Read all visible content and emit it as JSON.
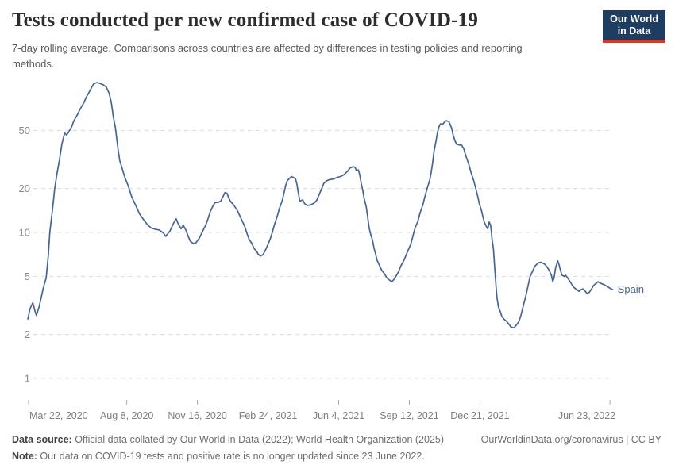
{
  "header": {
    "title": "Tests conducted per new confirmed case of COVID-19",
    "subtitle": "7-day rolling average. Comparisons across countries are affected by differences in testing policies and reporting methods.",
    "logo": {
      "line1": "Our World",
      "line2": "in Data",
      "bg_color": "#1d3d63",
      "accent_color": "#d13b27"
    }
  },
  "chart_data": {
    "type": "line",
    "title": "Tests conducted per new confirmed case of COVID-19",
    "y_scale": "log",
    "grid": true,
    "y_ticks": [
      1,
      2,
      5,
      10,
      20,
      50
    ],
    "ylim": [
      1,
      110
    ],
    "x_unit": "days since Mar 22, 2020",
    "xlim_days": [
      -1,
      827
    ],
    "x_ticks": [
      {
        "label": "Mar 22, 2020",
        "day": 0
      },
      {
        "label": "Aug 8, 2020",
        "day": 139
      },
      {
        "label": "Nov 16, 2020",
        "day": 239
      },
      {
        "label": "Feb 24, 2021",
        "day": 339
      },
      {
        "label": "Jun 4, 2021",
        "day": 439
      },
      {
        "label": "Sep 12, 2021",
        "day": 539
      },
      {
        "label": "Dec 21, 2021",
        "day": 639
      },
      {
        "label": "Jun 23, 2022",
        "day": 823
      }
    ],
    "series": [
      {
        "name": "Spain",
        "color": "#44659c",
        "points": [
          [
            -1,
            2.55
          ],
          [
            2,
            3.0
          ],
          [
            6,
            3.3
          ],
          [
            9,
            2.9
          ],
          [
            11,
            2.7
          ],
          [
            15,
            3.1
          ],
          [
            18,
            3.6
          ],
          [
            21,
            4.2
          ],
          [
            25,
            4.9
          ],
          [
            28,
            7.0
          ],
          [
            30,
            10
          ],
          [
            34,
            14.5
          ],
          [
            37,
            20
          ],
          [
            40,
            25
          ],
          [
            44,
            32
          ],
          [
            47,
            40
          ],
          [
            51,
            48
          ],
          [
            54,
            46.5
          ],
          [
            57,
            49
          ],
          [
            61,
            53
          ],
          [
            64,
            58
          ],
          [
            69,
            64
          ],
          [
            73,
            70
          ],
          [
            78,
            77
          ],
          [
            82,
            85
          ],
          [
            85,
            90
          ],
          [
            89,
            98
          ],
          [
            92,
            104
          ],
          [
            97,
            106.5
          ],
          [
            101,
            105
          ],
          [
            106,
            102.5
          ],
          [
            110,
            99
          ],
          [
            114,
            90
          ],
          [
            117,
            78
          ],
          [
            120,
            62
          ],
          [
            123,
            52
          ],
          [
            125,
            43
          ],
          [
            127,
            36
          ],
          [
            129,
            31
          ],
          [
            132,
            28
          ],
          [
            136,
            24
          ],
          [
            141,
            20.9
          ],
          [
            146,
            17.5
          ],
          [
            152,
            15.2
          ],
          [
            157,
            13.4
          ],
          [
            163,
            12.2
          ],
          [
            169,
            11.2
          ],
          [
            174,
            10.7
          ],
          [
            180,
            10.5
          ],
          [
            185,
            10.4
          ],
          [
            191,
            9.9
          ],
          [
            194,
            9.4
          ],
          [
            200,
            10.2
          ],
          [
            206,
            11.8
          ],
          [
            209,
            12.4
          ],
          [
            212,
            11.4
          ],
          [
            216,
            10.6
          ],
          [
            219,
            11.2
          ],
          [
            223,
            10.3
          ],
          [
            226,
            9.4
          ],
          [
            229,
            8.7
          ],
          [
            233,
            8.4
          ],
          [
            237,
            8.5
          ],
          [
            242,
            9.2
          ],
          [
            246,
            10.1
          ],
          [
            251,
            11.3
          ],
          [
            254,
            12.4
          ],
          [
            257,
            13.8
          ],
          [
            261,
            15.2
          ],
          [
            264,
            16.0
          ],
          [
            269,
            16.1
          ],
          [
            272,
            16.4
          ],
          [
            275,
            17.5
          ],
          [
            278,
            18.8
          ],
          [
            281,
            18.5
          ],
          [
            283,
            17.4
          ],
          [
            286,
            16.3
          ],
          [
            289,
            15.7
          ],
          [
            292,
            15.0
          ],
          [
            296,
            14.0
          ],
          [
            299,
            13.0
          ],
          [
            302,
            12.1
          ],
          [
            306,
            11.0
          ],
          [
            309,
            9.9
          ],
          [
            312,
            9.0
          ],
          [
            316,
            8.4
          ],
          [
            319,
            7.8
          ],
          [
            323,
            7.4
          ],
          [
            325,
            7.1
          ],
          [
            328,
            6.9
          ],
          [
            332,
            7.05
          ],
          [
            335,
            7.5
          ],
          [
            338,
            8.1
          ],
          [
            342,
            9.0
          ],
          [
            345,
            10.0
          ],
          [
            348,
            11.3
          ],
          [
            352,
            12.9
          ],
          [
            355,
            14.6
          ],
          [
            359,
            16.5
          ],
          [
            362,
            19.0
          ],
          [
            364,
            21.0
          ],
          [
            366,
            22.5
          ],
          [
            369,
            23.4
          ],
          [
            372,
            24.1
          ],
          [
            375,
            23.8
          ],
          [
            378,
            23.2
          ],
          [
            380,
            21.3
          ],
          [
            382,
            18.5
          ],
          [
            384,
            16.4
          ],
          [
            388,
            16.7
          ],
          [
            391,
            15.7
          ],
          [
            395,
            15.3
          ],
          [
            398,
            15.4
          ],
          [
            401,
            15.6
          ],
          [
            405,
            16.0
          ],
          [
            408,
            16.6
          ],
          [
            411,
            18.0
          ],
          [
            415,
            20.0
          ],
          [
            418,
            21.7
          ],
          [
            422,
            22.6
          ],
          [
            426,
            23.0
          ],
          [
            431,
            23.2
          ],
          [
            437,
            23.8
          ],
          [
            443,
            24.3
          ],
          [
            447,
            25.0
          ],
          [
            452,
            26.4
          ],
          [
            455,
            27.6
          ],
          [
            459,
            28.2
          ],
          [
            462,
            28.0
          ],
          [
            464,
            26.5
          ],
          [
            467,
            26.8
          ],
          [
            469,
            24.5
          ],
          [
            471,
            21.5
          ],
          [
            473,
            19.5
          ],
          [
            475,
            17.2
          ],
          [
            478,
            15.0
          ],
          [
            480,
            12.8
          ],
          [
            482,
            10.8
          ],
          [
            484,
            9.8
          ],
          [
            487,
            8.8
          ],
          [
            489,
            7.8
          ],
          [
            491,
            7.2
          ],
          [
            493,
            6.5
          ],
          [
            497,
            5.9
          ],
          [
            500,
            5.5
          ],
          [
            504,
            5.2
          ],
          [
            507,
            4.9
          ],
          [
            510,
            4.75
          ],
          [
            514,
            4.6
          ],
          [
            517,
            4.75
          ],
          [
            520,
            5.0
          ],
          [
            524,
            5.4
          ],
          [
            527,
            5.9
          ],
          [
            531,
            6.4
          ],
          [
            534,
            6.9
          ],
          [
            537,
            7.5
          ],
          [
            541,
            8.3
          ],
          [
            544,
            9.4
          ],
          [
            547,
            10.7
          ],
          [
            551,
            11.9
          ],
          [
            554,
            13.5
          ],
          [
            558,
            15.4
          ],
          [
            561,
            17.5
          ],
          [
            564,
            19.8
          ],
          [
            568,
            23.0
          ],
          [
            570,
            26.0
          ],
          [
            572,
            30.0
          ],
          [
            574,
            36.0
          ],
          [
            577,
            43.0
          ],
          [
            579,
            49.0
          ],
          [
            581,
            53.0
          ],
          [
            583,
            55.5
          ],
          [
            586,
            55.0
          ],
          [
            588,
            56.5
          ],
          [
            591,
            58.3
          ],
          [
            595,
            57.5
          ],
          [
            597,
            54.5
          ],
          [
            599,
            51.5
          ],
          [
            601,
            46.5
          ],
          [
            604,
            42.0
          ],
          [
            606,
            40.2
          ],
          [
            609,
            39.8
          ],
          [
            613,
            39.6
          ],
          [
            616,
            37.5
          ],
          [
            619,
            33.5
          ],
          [
            623,
            29.5
          ],
          [
            626,
            26.0
          ],
          [
            630,
            22.8
          ],
          [
            633,
            20.0
          ],
          [
            636,
            17.5
          ],
          [
            638,
            15.8
          ],
          [
            641,
            14.2
          ],
          [
            643,
            12.9
          ],
          [
            645,
            11.8
          ],
          [
            648,
            11.0
          ],
          [
            650,
            10.6
          ],
          [
            652,
            11.8
          ],
          [
            654,
            11.2
          ],
          [
            655,
            10.2
          ],
          [
            656,
            9.0
          ],
          [
            658,
            7.8
          ],
          [
            659,
            6.6
          ],
          [
            660,
            5.6
          ],
          [
            661,
            4.8
          ],
          [
            662,
            4.1
          ],
          [
            663,
            3.6
          ],
          [
            665,
            3.1
          ],
          [
            668,
            2.85
          ],
          [
            670,
            2.65
          ],
          [
            673,
            2.55
          ],
          [
            677,
            2.45
          ],
          [
            680,
            2.35
          ],
          [
            683,
            2.25
          ],
          [
            687,
            2.22
          ],
          [
            690,
            2.3
          ],
          [
            694,
            2.45
          ],
          [
            697,
            2.7
          ],
          [
            700,
            3.1
          ],
          [
            704,
            3.7
          ],
          [
            707,
            4.3
          ],
          [
            710,
            5.0
          ],
          [
            714,
            5.5
          ],
          [
            717,
            5.9
          ],
          [
            721,
            6.15
          ],
          [
            724,
            6.25
          ],
          [
            727,
            6.2
          ],
          [
            731,
            6.05
          ],
          [
            734,
            5.8
          ],
          [
            737,
            5.5
          ],
          [
            740,
            5.1
          ],
          [
            742,
            4.6
          ],
          [
            744,
            4.9
          ],
          [
            746,
            5.7
          ],
          [
            749,
            6.4
          ],
          [
            751,
            6.0
          ],
          [
            753,
            5.5
          ],
          [
            755,
            5.1
          ],
          [
            758,
            5.0
          ],
          [
            760,
            5.1
          ],
          [
            762,
            4.95
          ],
          [
            766,
            4.65
          ],
          [
            769,
            4.4
          ],
          [
            772,
            4.2
          ],
          [
            776,
            4.05
          ],
          [
            779,
            3.95
          ],
          [
            782,
            4.05
          ],
          [
            785,
            4.1
          ],
          [
            787,
            4.0
          ],
          [
            789,
            3.9
          ],
          [
            791,
            3.8
          ],
          [
            794,
            3.9
          ],
          [
            797,
            4.1
          ],
          [
            800,
            4.35
          ],
          [
            804,
            4.5
          ],
          [
            806,
            4.6
          ],
          [
            809,
            4.5
          ],
          [
            813,
            4.42
          ],
          [
            816,
            4.35
          ],
          [
            820,
            4.25
          ],
          [
            823,
            4.15
          ],
          [
            827,
            4.05
          ]
        ]
      }
    ]
  },
  "footer": {
    "datasource_label": "Data source:",
    "datasource_text": " Official data collated by Our World in Data (2022); World Health Organization (2025)",
    "rights_text": "OurWorldinData.org/coronavirus | CC BY",
    "note_label": "Note:",
    "note_text": " Our data on COVID-19 tests and positive rate is no longer updated since 23 June 2022."
  }
}
